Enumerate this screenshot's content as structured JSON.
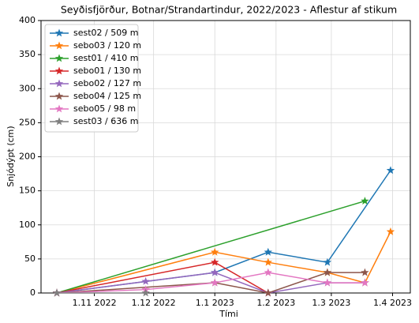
{
  "chart_data": {
    "type": "line",
    "title": "Seyðisfjörður, Botnar/Strandartindur, 2022/2023 - Aflestur af stikum",
    "xlabel": "Tími",
    "ylabel": "Snjódýpt (cm)",
    "xlim": [
      "2022-10-05",
      "2023-04-10"
    ],
    "xticks": [
      {
        "value": "2022-11-01",
        "label": "1.11 2022"
      },
      {
        "value": "2022-12-01",
        "label": "1.12 2022"
      },
      {
        "value": "2023-01-01",
        "label": "1.1 2023"
      },
      {
        "value": "2023-02-01",
        "label": "1.2 2023"
      },
      {
        "value": "2023-03-01",
        "label": "1.3 2023"
      },
      {
        "value": "2023-04-01",
        "label": "1.4 2023"
      }
    ],
    "ylim": [
      0,
      400
    ],
    "yticks": [
      0,
      50,
      100,
      150,
      200,
      250,
      300,
      350,
      400
    ],
    "grid": true,
    "legend": "upper left",
    "series": [
      {
        "name": "sest02 / 509 m",
        "color": "#1f77b4",
        "x": [
          "2022-10-13",
          "2023-01-01",
          "2023-01-28",
          "2023-02-27",
          "2023-03-31"
        ],
        "values": [
          0,
          30,
          60,
          45,
          180
        ]
      },
      {
        "name": "sebo03 / 120 m",
        "color": "#ff7f0e",
        "x": [
          "2022-10-13",
          "2023-01-01",
          "2023-01-28",
          "2023-02-27",
          "2023-03-18",
          "2023-03-31"
        ],
        "values": [
          0,
          60,
          45,
          30,
          15,
          90
        ]
      },
      {
        "name": "sest01 / 410 m",
        "color": "#2ca02c",
        "x": [
          "2022-10-13",
          "2023-03-18"
        ],
        "values": [
          0,
          135
        ]
      },
      {
        "name": "sebo01 / 130 m",
        "color": "#d62728",
        "x": [
          "2022-10-13",
          "2023-01-01",
          "2023-01-28"
        ],
        "values": [
          0,
          45,
          0
        ]
      },
      {
        "name": "sebo02 / 127 m",
        "color": "#9467bd",
        "x": [
          "2022-10-13",
          "2022-11-27",
          "2023-01-01",
          "2023-01-28",
          "2023-02-27",
          "2023-03-18"
        ],
        "values": [
          0,
          17,
          30,
          0,
          15,
          15
        ]
      },
      {
        "name": "sebo04 / 125 m",
        "color": "#8c564b",
        "x": [
          "2022-10-13",
          "2023-01-01",
          "2023-01-28",
          "2023-02-27",
          "2023-03-18"
        ],
        "values": [
          0,
          15,
          0,
          30,
          30
        ]
      },
      {
        "name": "sebo05 / 98 m",
        "color": "#e377c2",
        "x": [
          "2022-10-13",
          "2022-11-27",
          "2023-01-01",
          "2023-01-28",
          "2023-02-27",
          "2023-03-18"
        ],
        "values": [
          0,
          5,
          15,
          30,
          15,
          15
        ]
      },
      {
        "name": "sest03 / 636 m",
        "color": "#7f7f7f",
        "x": [
          "2022-10-13",
          "2022-11-27"
        ],
        "values": [
          0,
          0
        ]
      }
    ]
  }
}
